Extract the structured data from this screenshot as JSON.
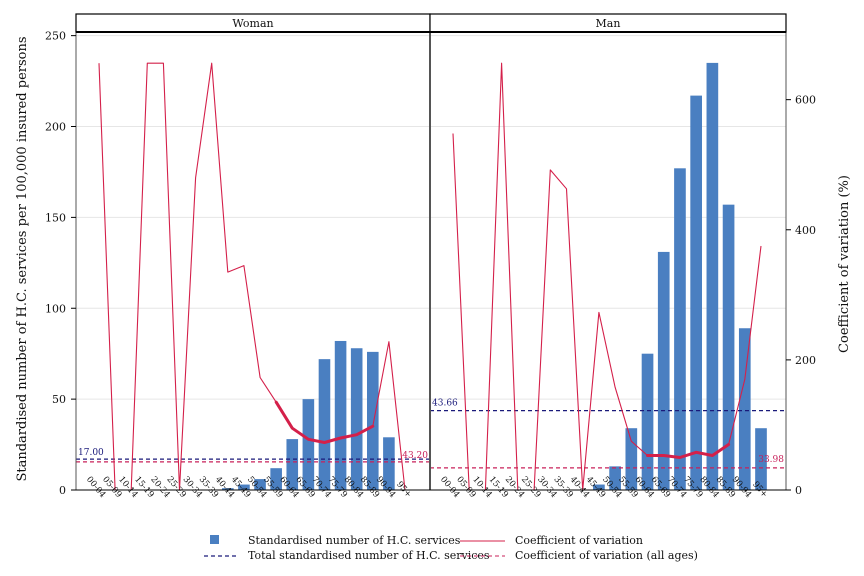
{
  "chart_data": {
    "type": "bar",
    "ylabel_left": "Standardised number of H.C. services per 100,000 insured persons",
    "ylabel_right": "Coefficient of variation (%)",
    "ylim_left": [
      0,
      252
    ],
    "ylim_right": [
      0,
      704
    ],
    "yticks_left": [
      "0",
      "50",
      "100",
      "150",
      "200",
      "250"
    ],
    "yticks_right": [
      "0",
      "200",
      "400",
      "600"
    ],
    "categories": [
      "00-04",
      "05-09",
      "10-14",
      "15-19",
      "20-24",
      "25-29",
      "30-34",
      "35-39",
      "40-44",
      "45-49",
      "50-54",
      "55-59",
      "60-64",
      "65-69",
      "70-74",
      "75-79",
      "80-84",
      "85-89",
      "90-94",
      "95+"
    ],
    "grid": true,
    "legend_position": "bottom",
    "legend": {
      "bars": "Standardised number of H.C. services",
      "cv": "Coefficient of variation",
      "total": "Total standardised number of H.C. services",
      "cv_all": "Coefficient of variation (all ages)"
    },
    "colors": {
      "bars": "#4a7fc1",
      "cv": "#d4204a",
      "total": "#1a1a7a",
      "cv_all": "#c8205a"
    },
    "panels": [
      {
        "title": "Woman",
        "bars": [
          0,
          0,
          0,
          0,
          0,
          0,
          0,
          0,
          1,
          3,
          6,
          12,
          28,
          50,
          72,
          82,
          78,
          76,
          29,
          0
        ],
        "cv": [
          656,
          0,
          0,
          656,
          656,
          0,
          480,
          656,
          335,
          345,
          173,
          135,
          95,
          78,
          73,
          80,
          85,
          98,
          228,
          0
        ],
        "cv_thick_from": "55-59",
        "cv_thick_to": "85-89",
        "total": 17.0,
        "total_label": "17.00",
        "cv_all": 43.2,
        "cv_all_label": "43.20"
      },
      {
        "title": "Man",
        "bars": [
          0,
          0,
          0,
          0,
          0,
          0,
          0,
          0,
          0,
          3,
          13,
          34,
          75,
          131,
          177,
          217,
          235,
          157,
          89,
          34
        ],
        "cv": [
          548,
          0,
          0,
          656,
          0,
          0,
          492,
          463,
          0,
          273,
          158,
          75,
          53,
          53,
          50,
          58,
          53,
          70,
          170,
          375
        ],
        "cv_thick_from": "60-64",
        "cv_thick_to": "85-89",
        "total": 43.66,
        "total_label": "43.66",
        "cv_all": 33.98,
        "cv_all_label": "33.98"
      }
    ]
  }
}
